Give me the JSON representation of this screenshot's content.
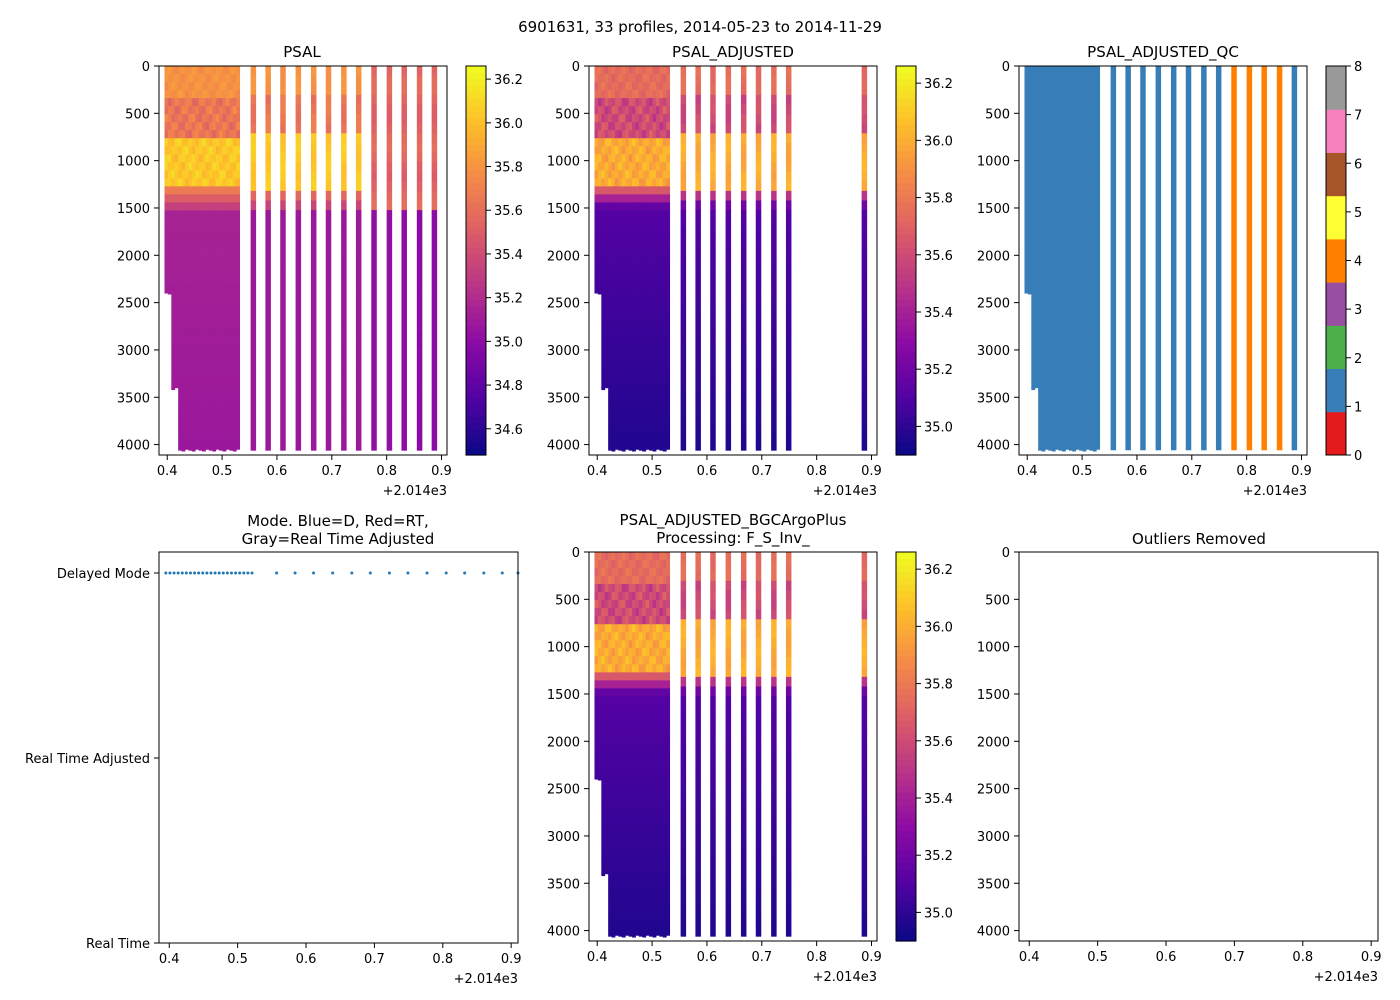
{
  "figure_title": "6901631, 33 profiles, 2014-05-23 to 2014-11-29",
  "colors": {
    "plasma": [
      "#0d0887",
      "#5302a3",
      "#8b0aa5",
      "#b83289",
      "#db5c68",
      "#f48849",
      "#febd2a",
      "#f0f921"
    ],
    "qc": [
      "#e41a1c",
      "#377eb8",
      "#4daf4a",
      "#984ea3",
      "#ff7f00",
      "#ffff33",
      "#a65628",
      "#f781bf",
      "#999999"
    ],
    "mode_dots": "#1f77b4"
  },
  "chart_data": [
    {
      "id": "psal",
      "type": "heatmap",
      "title": "PSAL",
      "x_ticks": [
        "0.4",
        "0.5",
        "0.6",
        "0.7",
        "0.8",
        "0.9"
      ],
      "x_offset_label": "+2.014e3",
      "xlim": [
        0.385,
        0.91
      ],
      "y_ticks": [
        "0",
        "500",
        "1000",
        "1500",
        "2000",
        "2500",
        "3000",
        "3500",
        "4000"
      ],
      "ylim": [
        4110,
        0
      ],
      "colorbar_ticks": [
        "34.6",
        "34.8",
        "35.0",
        "35.2",
        "35.4",
        "35.6",
        "35.8",
        "36.0",
        "36.2"
      ],
      "colorbar_range": [
        34.48,
        36.26
      ],
      "dense_block_x": [
        0.395,
        0.532
      ],
      "profile_x": [
        0.557,
        0.584,
        0.611,
        0.639,
        0.667,
        0.694,
        0.722,
        0.749,
        0.777,
        0.805,
        0.832,
        0.86,
        0.887
      ],
      "profile_deep_value": [
        35.08,
        35.08,
        35.08,
        35.08,
        35.08,
        35.08,
        35.08,
        35.08,
        35.02,
        35.02,
        35.0,
        34.98,
        34.98
      ],
      "profile_max_depth": 4060
    },
    {
      "id": "psal_adjusted",
      "type": "heatmap",
      "title": "PSAL_ADJUSTED",
      "x_ticks": [
        "0.4",
        "0.5",
        "0.6",
        "0.7",
        "0.8",
        "0.9"
      ],
      "x_offset_label": "+2.014e3",
      "xlim": [
        0.385,
        0.91
      ],
      "y_ticks": [
        "0",
        "500",
        "1000",
        "1500",
        "2000",
        "2500",
        "3000",
        "3500",
        "4000"
      ],
      "ylim": [
        4110,
        0
      ],
      "colorbar_ticks": [
        "35.0",
        "35.2",
        "35.4",
        "35.6",
        "35.8",
        "36.0",
        "36.2"
      ],
      "colorbar_range": [
        34.9,
        36.26
      ],
      "dense_block_x": [
        0.395,
        0.532
      ],
      "profile_x": [
        0.557,
        0.584,
        0.611,
        0.639,
        0.667,
        0.694,
        0.722,
        0.749,
        0.887
      ],
      "profile_max_depth": 4060
    },
    {
      "id": "psal_adjusted_qc",
      "type": "heatmap",
      "title": "PSAL_ADJUSTED_QC",
      "x_ticks": [
        "0.4",
        "0.5",
        "0.6",
        "0.7",
        "0.8",
        "0.9"
      ],
      "x_offset_label": "+2.014e3",
      "xlim": [
        0.385,
        0.91
      ],
      "y_ticks": [
        "0",
        "500",
        "1000",
        "1500",
        "2000",
        "2500",
        "3000",
        "3500",
        "4000"
      ],
      "ylim": [
        4110,
        0
      ],
      "colorbar_ticks": [
        "0",
        "1",
        "2",
        "3",
        "4",
        "5",
        "6",
        "7",
        "8"
      ],
      "colorbar_range": [
        0,
        8
      ],
      "dense_block_x": [
        0.395,
        0.532
      ],
      "dense_block_flag": 1,
      "profile_x": [
        0.557,
        0.584,
        0.611,
        0.639,
        0.667,
        0.694,
        0.722,
        0.749,
        0.777,
        0.805,
        0.832,
        0.86,
        0.887
      ],
      "profile_flag": [
        1,
        1,
        1,
        1,
        1,
        1,
        1,
        1,
        4,
        4,
        4,
        4,
        1
      ],
      "profile_max_depth": 4060
    },
    {
      "id": "mode",
      "type": "scatter",
      "title": "Mode. Blue=D, Red=RT,",
      "title_line2": "Gray=Real Time Adjusted",
      "x_ticks": [
        "0.4",
        "0.5",
        "0.6",
        "0.7",
        "0.8",
        "0.9"
      ],
      "x_offset_label": "+2.014e3",
      "xlim": [
        0.385,
        0.91
      ],
      "y_categories": [
        "Delayed Mode",
        "Real Time Adjusted",
        "Real Time"
      ],
      "x": [
        0.395,
        0.401,
        0.407,
        0.413,
        0.419,
        0.425,
        0.431,
        0.437,
        0.443,
        0.449,
        0.455,
        0.461,
        0.467,
        0.473,
        0.479,
        0.485,
        0.491,
        0.497,
        0.503,
        0.509,
        0.515,
        0.521,
        0.557,
        0.584,
        0.611,
        0.639,
        0.667,
        0.694,
        0.722,
        0.749,
        0.777,
        0.805,
        0.832,
        0.86,
        0.887,
        0.91
      ],
      "y": "Delayed Mode"
    },
    {
      "id": "psal_adjusted_bgc",
      "type": "heatmap",
      "title": "PSAL_ADJUSTED_BGCArgoPlus",
      "title_line2": "Processing: F_S_Inv_",
      "x_ticks": [
        "0.4",
        "0.5",
        "0.6",
        "0.7",
        "0.8",
        "0.9"
      ],
      "x_offset_label": "+2.014e3",
      "xlim": [
        0.385,
        0.91
      ],
      "y_ticks": [
        "0",
        "500",
        "1000",
        "1500",
        "2000",
        "2500",
        "3000",
        "3500",
        "4000"
      ],
      "ylim": [
        4110,
        0
      ],
      "colorbar_ticks": [
        "35.0",
        "35.2",
        "35.4",
        "35.6",
        "35.8",
        "36.0",
        "36.2"
      ],
      "colorbar_range": [
        34.9,
        36.26
      ],
      "dense_block_x": [
        0.395,
        0.532
      ],
      "profile_x": [
        0.557,
        0.584,
        0.611,
        0.639,
        0.667,
        0.694,
        0.722,
        0.749,
        0.887
      ],
      "profile_max_depth": 4060
    },
    {
      "id": "outliers",
      "type": "scatter",
      "title": "Outliers Removed",
      "x_ticks": [
        "0.4",
        "0.5",
        "0.6",
        "0.7",
        "0.8",
        "0.9"
      ],
      "x_offset_label": "+2.014e3",
      "xlim": [
        0.385,
        0.91
      ],
      "y_ticks": [
        "0",
        "500",
        "1000",
        "1500",
        "2000",
        "2500",
        "3000",
        "3500",
        "4000"
      ],
      "ylim": [
        4110,
        0
      ],
      "points": []
    }
  ]
}
